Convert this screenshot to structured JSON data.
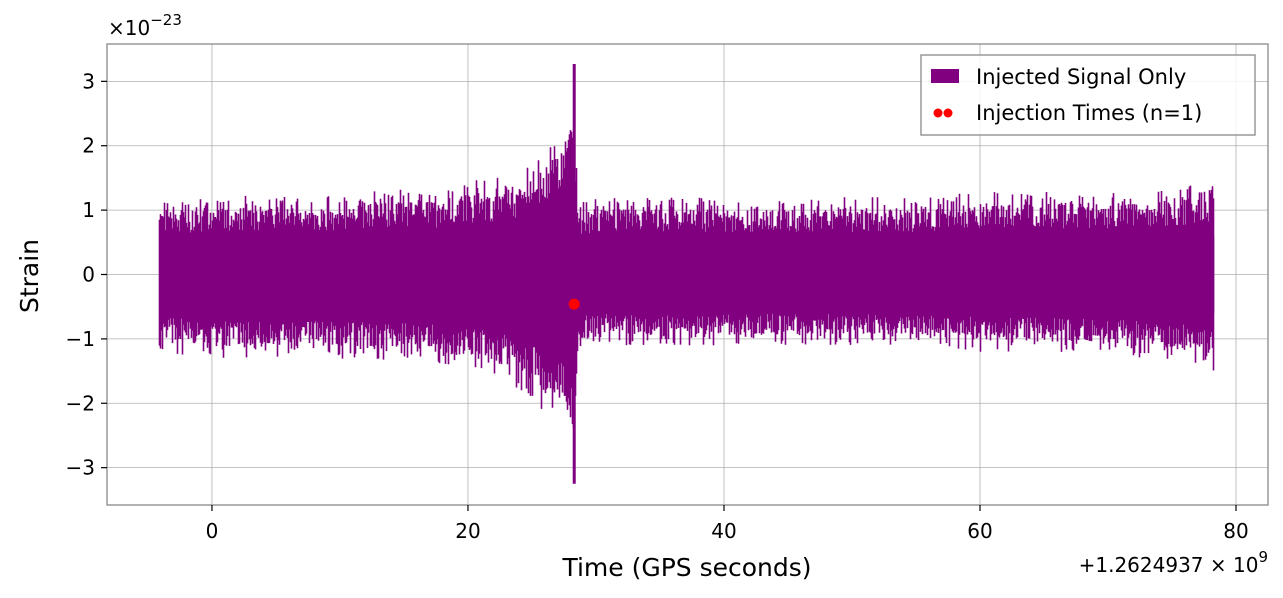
{
  "chart_data": {
    "type": "line",
    "title": "",
    "xlabel": "Time (GPS seconds)",
    "ylabel": "Strain",
    "x_offset_label": "+1.2624937",
    "x_offset_label_exp": "9",
    "y_multiplier_label": "×10",
    "y_multiplier_exp": "−23",
    "xlim": [
      -8.2,
      82.5
    ],
    "ylim": [
      -3.58,
      3.58
    ],
    "x_ticks": [
      0,
      20,
      40,
      60,
      80
    ],
    "x_tick_labels": [
      "0",
      "20",
      "40",
      "60",
      "80"
    ],
    "y_ticks": [
      -3,
      -2,
      -1,
      0,
      1,
      2,
      3
    ],
    "y_tick_labels": [
      "−3",
      "−2",
      "−1",
      "0",
      "1",
      "2",
      "3"
    ],
    "grid": true,
    "legend_position": "top-right",
    "series": [
      {
        "name": "Injected Signal Only",
        "color": "#800080",
        "x_range": [
          -4.1,
          78.3
        ],
        "envelope": {
          "x": [
            -4.1,
            0,
            4,
            8,
            12,
            16,
            18,
            20,
            22,
            24,
            25,
            26,
            27,
            27.5,
            28,
            28.3,
            28.6,
            30,
            35,
            40,
            45,
            50,
            55,
            60,
            65,
            70,
            75,
            78.3
          ],
          "upper": [
            1.15,
            1.2,
            1.25,
            1.2,
            1.3,
            1.35,
            1.3,
            1.45,
            1.5,
            1.6,
            1.8,
            2.0,
            2.3,
            2.4,
            2.3,
            3.27,
            1.1,
            1.2,
            1.2,
            1.2,
            1.2,
            1.2,
            1.2,
            1.3,
            1.3,
            1.3,
            1.35,
            1.45
          ],
          "lower": [
            -1.2,
            -1.3,
            -1.3,
            -1.3,
            -1.35,
            -1.35,
            -1.45,
            -1.5,
            -1.6,
            -1.8,
            -2.0,
            -2.2,
            -2.3,
            -2.4,
            -2.6,
            -3.25,
            -1.2,
            -1.1,
            -1.1,
            -1.1,
            -1.1,
            -1.1,
            -1.1,
            -1.2,
            -1.2,
            -1.25,
            -1.35,
            -1.5
          ]
        }
      },
      {
        "name": "Injection Times (n=1)",
        "color": "#ff0000",
        "type": "scatter",
        "points": [
          {
            "x": 28.3,
            "y": -0.46
          }
        ]
      }
    ]
  }
}
